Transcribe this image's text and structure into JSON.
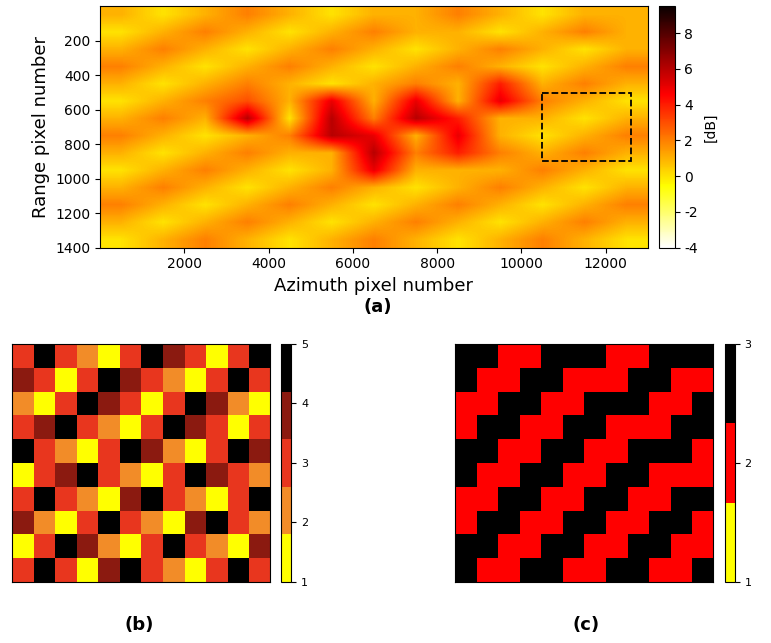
{
  "chart_data": [
    {
      "type": "heatmap",
      "caption": "(a)",
      "x_label": "Azimuth pixel number",
      "y_label": "Range pixel number",
      "xlim": [
        0,
        13000
      ],
      "ylim": [
        1400,
        0
      ],
      "xticks": [
        2000,
        4000,
        6000,
        8000,
        10000,
        12000
      ],
      "yticks": [
        200,
        400,
        600,
        800,
        1000,
        1200,
        1400
      ],
      "color_range": [
        -4,
        9.5
      ],
      "color_ticks": [
        -4,
        -2,
        0,
        2,
        4,
        6,
        8
      ],
      "color_label": "[dB]",
      "box": {
        "x": [
          10500,
          12600
        ],
        "y": [
          500,
          900
        ]
      },
      "cells": [
        [
          1,
          0,
          1,
          2,
          1,
          0,
          1,
          1,
          2,
          1,
          0,
          1,
          1
        ],
        [
          0,
          1,
          2,
          1,
          0,
          1,
          2,
          1,
          1,
          0,
          1,
          2,
          1
        ],
        [
          1,
          2,
          1,
          0,
          1,
          2,
          1,
          0,
          1,
          2,
          1,
          0,
          1
        ],
        [
          2,
          1,
          0,
          1,
          2,
          1,
          0,
          1,
          2,
          1,
          0,
          1,
          2
        ],
        [
          1,
          0,
          1,
          2,
          1,
          0,
          1,
          2,
          1,
          4,
          1,
          2,
          1
        ],
        [
          0,
          1,
          2,
          3,
          1,
          5,
          1,
          5,
          1,
          5,
          2,
          1,
          0
        ],
        [
          1,
          2,
          1,
          6,
          0,
          6,
          2,
          6,
          4,
          1,
          1,
          0,
          1
        ],
        [
          2,
          1,
          0,
          1,
          2,
          6,
          5,
          1,
          5,
          1,
          0,
          1,
          2
        ],
        [
          1,
          0,
          1,
          2,
          1,
          1,
          6,
          2,
          4,
          2,
          1,
          2,
          1
        ],
        [
          0,
          1,
          2,
          1,
          0,
          1,
          5,
          1,
          1,
          1,
          2,
          1,
          0
        ],
        [
          1,
          2,
          1,
          0,
          1,
          2,
          1,
          0,
          1,
          2,
          1,
          0,
          1
        ],
        [
          2,
          1,
          0,
          1,
          2,
          1,
          0,
          1,
          2,
          1,
          0,
          1,
          2
        ],
        [
          1,
          0,
          1,
          2,
          1,
          0,
          1,
          2,
          1,
          0,
          1,
          2,
          1
        ],
        [
          0,
          1,
          2,
          1,
          0,
          1,
          2,
          1,
          0,
          1,
          2,
          1,
          0
        ]
      ]
    },
    {
      "type": "class_map",
      "caption": "(b)",
      "tick_labels": false,
      "color_range": [
        1,
        5
      ],
      "color_ticks": [
        1,
        2,
        3,
        4,
        5
      ],
      "colors": [
        "#ffff00",
        "#f28c28",
        "#e8361e",
        "#8b1a10",
        "#000000"
      ],
      "cells": [
        [
          3,
          5,
          3,
          2,
          1,
          3,
          5,
          4,
          3,
          1,
          3,
          5
        ],
        [
          4,
          3,
          1,
          3,
          5,
          4,
          3,
          2,
          1,
          3,
          5,
          3
        ],
        [
          2,
          1,
          3,
          5,
          4,
          3,
          1,
          3,
          5,
          4,
          2,
          1
        ],
        [
          3,
          4,
          5,
          3,
          2,
          1,
          3,
          5,
          4,
          3,
          1,
          3
        ],
        [
          5,
          3,
          2,
          1,
          3,
          5,
          4,
          2,
          1,
          3,
          5,
          4
        ],
        [
          1,
          3,
          4,
          5,
          3,
          2,
          1,
          3,
          5,
          4,
          3,
          2
        ],
        [
          3,
          5,
          3,
          2,
          1,
          4,
          5,
          3,
          2,
          1,
          3,
          5
        ],
        [
          4,
          2,
          1,
          3,
          5,
          3,
          2,
          1,
          4,
          5,
          3,
          2
        ],
        [
          1,
          3,
          5,
          4,
          2,
          1,
          3,
          5,
          3,
          2,
          1,
          4
        ],
        [
          3,
          5,
          3,
          1,
          4,
          5,
          3,
          2,
          1,
          3,
          5,
          3
        ]
      ]
    },
    {
      "type": "class_map",
      "caption": "(c)",
      "tick_labels": false,
      "color_range": [
        1,
        3
      ],
      "color_ticks": [
        1,
        2,
        3
      ],
      "colors": [
        "#ffff00",
        "#ff0000",
        "#000000"
      ],
      "cells": [
        [
          3,
          3,
          2,
          2,
          3,
          3,
          3,
          2,
          2,
          3,
          3,
          3
        ],
        [
          3,
          2,
          2,
          3,
          3,
          2,
          2,
          2,
          3,
          3,
          2,
          2
        ],
        [
          2,
          2,
          3,
          3,
          2,
          2,
          3,
          3,
          3,
          2,
          2,
          3
        ],
        [
          2,
          3,
          3,
          2,
          2,
          3,
          3,
          2,
          2,
          2,
          3,
          3
        ],
        [
          3,
          3,
          2,
          2,
          3,
          3,
          2,
          2,
          3,
          3,
          3,
          2
        ],
        [
          3,
          2,
          2,
          3,
          3,
          2,
          2,
          3,
          3,
          2,
          2,
          2
        ],
        [
          2,
          2,
          3,
          3,
          2,
          2,
          3,
          3,
          2,
          2,
          3,
          3
        ],
        [
          2,
          3,
          3,
          2,
          2,
          3,
          3,
          2,
          2,
          3,
          3,
          2
        ],
        [
          3,
          3,
          2,
          2,
          3,
          3,
          2,
          2,
          3,
          3,
          2,
          2
        ],
        [
          3,
          2,
          2,
          3,
          3,
          2,
          2,
          3,
          3,
          2,
          2,
          3
        ]
      ]
    }
  ]
}
